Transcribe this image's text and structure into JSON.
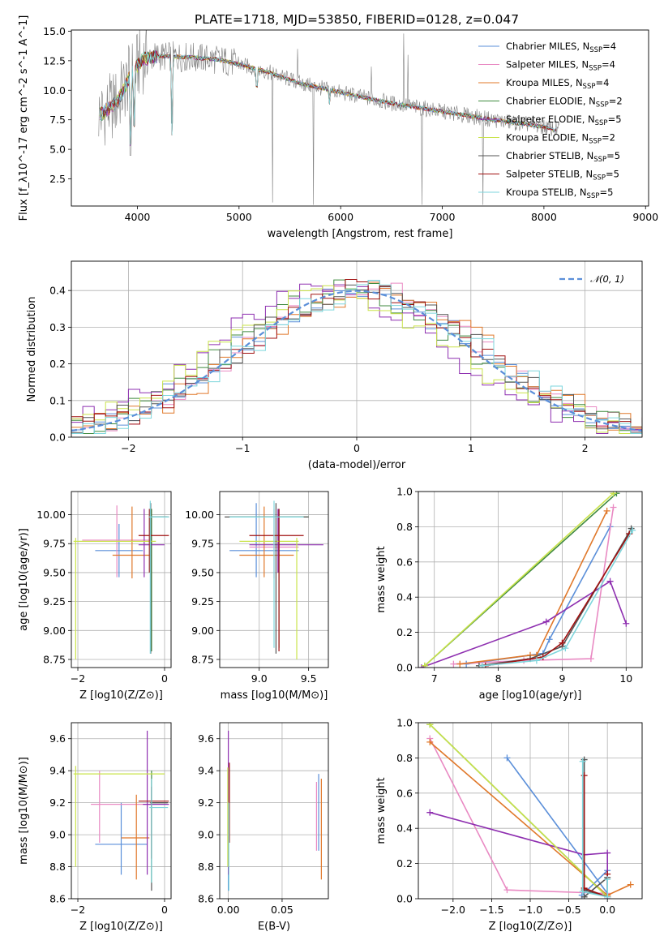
{
  "figure_title": "PLATE=1718, MJD=53850, FIBERID=0128, z=0.047",
  "colors": {
    "chabrier_miles": "#5b8fd9",
    "salpeter_miles": "#e98ac3",
    "kroupa_miles": "#e0782a",
    "chabrier_elodie": "#3f8a3f",
    "salpeter_elodie": "#8e2fb0",
    "kroupa_elodie": "#c9e34a",
    "chabrier_stelib": "#555555",
    "salpeter_stelib": "#a01010",
    "kroupa_stelib": "#7ed6dc",
    "gaussian": "#5b8fd9",
    "data": "#808080"
  },
  "chart_data": [
    {
      "id": "spectrum",
      "type": "line",
      "xlabel": "wavelength [Angstrom, rest frame]",
      "ylabel": "Flux [f_λ10^-17 erg cm^-2 s^-1 A^-1]",
      "xlim": [
        3350,
        9030
      ],
      "ylim": [
        0.2,
        15.1
      ],
      "xticks": [
        4000,
        5000,
        6000,
        7000,
        8000,
        9000
      ],
      "yticks": [
        2.5,
        5.0,
        7.5,
        10.0,
        12.5,
        15.0
      ],
      "legend_position": "top-right",
      "legend": [
        {
          "label": "Chabrier MILES, N",
          "sub": "SSP",
          "suffix": "=4",
          "color": "#5b8fd9"
        },
        {
          "label": "Salpeter MILES, N",
          "sub": "SSP",
          "suffix": "=4",
          "color": "#e98ac3"
        },
        {
          "label": "Kroupa MILES, N",
          "sub": "SSP",
          "suffix": "=4",
          "color": "#e0782a"
        },
        {
          "label": "Chabrier ELODIE, N",
          "sub": "SSP",
          "suffix": "=2",
          "color": "#3f8a3f"
        },
        {
          "label": "Salpeter ELODIE, N",
          "sub": "SSP",
          "suffix": "=5",
          "color": "#8e2fb0"
        },
        {
          "label": "Kroupa ELODIE, N",
          "sub": "SSP",
          "suffix": "=2",
          "color": "#c9e34a"
        },
        {
          "label": "Chabrier STELIB, N",
          "sub": "SSP",
          "suffix": "=5",
          "color": "#555555"
        },
        {
          "label": "Salpeter STELIB, N",
          "sub": "SSP",
          "suffix": "=5",
          "color": "#a01010"
        },
        {
          "label": "Kroupa STELIB, N",
          "sub": "SSP",
          "suffix": "=5",
          "color": "#7ed6dc"
        }
      ],
      "continuum_shape": [
        [
          3650,
          8.0
        ],
        [
          3800,
          9.0
        ],
        [
          3950,
          11.5
        ],
        [
          4050,
          12.6
        ],
        [
          4200,
          12.9
        ],
        [
          4500,
          12.8
        ],
        [
          4800,
          12.6
        ],
        [
          5000,
          12.2
        ],
        [
          5300,
          11.5
        ],
        [
          5600,
          10.6
        ],
        [
          6000,
          9.8
        ],
        [
          6500,
          8.9
        ],
        [
          7000,
          8.2
        ],
        [
          7500,
          7.5
        ],
        [
          8000,
          6.9
        ],
        [
          8100,
          6.7
        ]
      ],
      "absorption_features": [
        [
          3933,
          3.5
        ],
        [
          3968,
          6.0
        ],
        [
          4340,
          6.2
        ],
        [
          5175,
          9.3
        ],
        [
          5890,
          8.8
        ],
        [
          6563,
          8.6
        ],
        [
          7400,
          7.4
        ],
        [
          8100,
          6.5
        ]
      ],
      "data_spikes": [
        [
          5330,
          0.5
        ],
        [
          5577,
          13.5
        ],
        [
          5730,
          0.3
        ],
        [
          6300,
          12.0
        ],
        [
          6620,
          14.8
        ],
        [
          6660,
          13.0
        ],
        [
          6800,
          0.3
        ],
        [
          7400,
          0.3
        ]
      ]
    },
    {
      "id": "residuals",
      "type": "line",
      "xlabel": "(data-model)/error",
      "ylabel": "Normed distribution",
      "xlim": [
        -2.5,
        2.5
      ],
      "ylim": [
        0.0,
        0.48
      ],
      "xticks": [
        -2,
        -1,
        0,
        1,
        2
      ],
      "yticks": [
        0.0,
        0.1,
        0.2,
        0.3,
        0.4
      ],
      "legend": [
        {
          "label": "N(0,1)",
          "color": "#5b8fd9"
        }
      ],
      "legend_position": "top-right",
      "bin_width": 0.1,
      "series_shifts": [
        0.0,
        0.08,
        0.12,
        -0.05,
        -0.25,
        -0.2,
        0.02,
        0.05,
        0.1
      ]
    },
    {
      "id": "age_vs_z",
      "type": "scatter",
      "xlabel": "Z [log10(Z/Z⊙)]",
      "ylabel": "age [log10(age/yr)]",
      "xlim": [
        -2.15,
        0.15
      ],
      "ylim": [
        8.68,
        10.2
      ],
      "xticks": [
        -2,
        0
      ],
      "yticks": [
        8.75,
        9.0,
        9.25,
        9.5,
        9.75,
        10.0
      ],
      "points": [
        {
          "c": "#5b8fd9",
          "x": [
            -1.6,
            -0.5
          ],
          "xc": -1.05,
          "y": [
            9.46,
            9.92
          ],
          "yc": 9.69
        },
        {
          "c": "#e98ac3",
          "x": [
            -1.9,
            -0.3
          ],
          "xc": -1.1,
          "y": [
            9.46,
            10.08
          ],
          "yc": 9.78
        },
        {
          "c": "#e0782a",
          "x": [
            -1.2,
            -0.3
          ],
          "xc": -0.75,
          "y": [
            9.45,
            10.07
          ],
          "yc": 9.65
        },
        {
          "c": "#3f8a3f",
          "x": [
            -0.32,
            0.06
          ],
          "xc": -0.3,
          "y": [
            8.82,
            10.05
          ],
          "yc": 9.98
        },
        {
          "c": "#8e2fb0",
          "x": [
            -0.6,
            0.0
          ],
          "xc": -0.47,
          "y": [
            9.46,
            10.05
          ],
          "yc": 9.74
        },
        {
          "c": "#c9e34a",
          "x": [
            -2.1,
            -0.2
          ],
          "xc": -2.05,
          "y": [
            8.75,
            9.8
          ],
          "yc": 9.77
        },
        {
          "c": "#555555",
          "x": [
            -0.32,
            0.1
          ],
          "xc": -0.32,
          "y": [
            8.8,
            10.1
          ],
          "yc": 9.98
        },
        {
          "c": "#a01010",
          "x": [
            -0.6,
            0.1
          ],
          "xc": -0.35,
          "y": [
            9.5,
            10.05
          ],
          "yc": 9.82
        },
        {
          "c": "#7ed6dc",
          "x": [
            -0.36,
            0.1
          ],
          "xc": -0.33,
          "y": [
            8.8,
            10.12
          ],
          "yc": 9.98
        }
      ]
    },
    {
      "id": "age_vs_mass",
      "type": "scatter",
      "xlabel": "mass [log10(M/M⊙)]",
      "ylabel": "",
      "xlim": [
        8.6,
        9.7
      ],
      "ylim": [
        8.68,
        10.2
      ],
      "xticks": [
        9.0,
        9.5
      ],
      "yticks": [
        8.75,
        9.0,
        9.25,
        9.5,
        9.75,
        10.0
      ],
      "points": [
        {
          "c": "#5b8fd9",
          "x": [
            8.7,
            9.4
          ],
          "xc": 8.97,
          "y": [
            9.46,
            10.1
          ],
          "yc": 9.69
        },
        {
          "c": "#e98ac3",
          "x": [
            8.9,
            9.4
          ],
          "xc": 9.15,
          "y": [
            9.45,
            10.05
          ],
          "yc": 9.72
        },
        {
          "c": "#e0782a",
          "x": [
            8.8,
            9.35
          ],
          "xc": 9.05,
          "y": [
            9.46,
            10.07
          ],
          "yc": 9.65
        },
        {
          "c": "#3f8a3f",
          "x": [
            8.7,
            9.5
          ],
          "xc": 9.2,
          "y": [
            8.85,
            10.05
          ],
          "yc": 9.98
        },
        {
          "c": "#8e2fb0",
          "x": [
            8.9,
            9.65
          ],
          "xc": 9.19,
          "y": [
            9.5,
            10.05
          ],
          "yc": 9.74
        },
        {
          "c": "#c9e34a",
          "x": [
            8.8,
            9.4
          ],
          "xc": 9.38,
          "y": [
            8.75,
            9.8
          ],
          "yc": 9.77
        },
        {
          "c": "#555555",
          "x": [
            8.65,
            9.5
          ],
          "xc": 9.17,
          "y": [
            8.8,
            10.1
          ],
          "yc": 9.98
        },
        {
          "c": "#a01010",
          "x": [
            8.9,
            9.45
          ],
          "xc": 9.2,
          "y": [
            8.82,
            10.05
          ],
          "yc": 9.82
        },
        {
          "c": "#7ed6dc",
          "x": [
            8.7,
            9.45
          ],
          "xc": 9.15,
          "y": [
            8.85,
            10.12
          ],
          "yc": 9.98
        }
      ]
    },
    {
      "id": "weight_vs_age",
      "type": "line",
      "xlabel": "age [log10(age/yr)]",
      "ylabel": "mass weight",
      "xlim": [
        6.75,
        10.25
      ],
      "ylim": [
        0.0,
        1.0
      ],
      "xticks": [
        7,
        8,
        9,
        10
      ],
      "yticks": [
        0.0,
        0.2,
        0.4,
        0.6,
        0.8,
        1.0
      ],
      "series": [
        {
          "c": "#5b8fd9",
          "x": [
            7.5,
            8.7,
            8.8,
            9.75
          ],
          "y": [
            0.02,
            0.08,
            0.16,
            0.8
          ]
        },
        {
          "c": "#e98ac3",
          "x": [
            7.3,
            8.4,
            9.45,
            9.8
          ],
          "y": [
            0.02,
            0.04,
            0.05,
            0.91
          ]
        },
        {
          "c": "#e0782a",
          "x": [
            7.4,
            8.5,
            8.6,
            9.7
          ],
          "y": [
            0.02,
            0.07,
            0.07,
            0.89
          ]
        },
        {
          "c": "#3f8a3f",
          "x": [
            6.85,
            9.85
          ],
          "y": [
            0.01,
            0.99
          ]
        },
        {
          "c": "#8e2fb0",
          "x": [
            6.8,
            8.75,
            9.75,
            10.0
          ],
          "y": [
            0.0,
            0.26,
            0.49,
            0.25
          ]
        },
        {
          "c": "#c9e34a",
          "x": [
            6.85,
            9.8
          ],
          "y": [
            0.01,
            0.99
          ]
        },
        {
          "c": "#555555",
          "x": [
            7.7,
            8.5,
            9.0,
            10.08
          ],
          "y": [
            0.01,
            0.05,
            0.12,
            0.79
          ]
        },
        {
          "c": "#a01010",
          "x": [
            7.8,
            8.7,
            9.0,
            10.05
          ],
          "y": [
            0.01,
            0.06,
            0.14,
            0.76
          ]
        },
        {
          "c": "#7ed6dc",
          "x": [
            7.75,
            8.6,
            9.05,
            10.1
          ],
          "y": [
            0.01,
            0.04,
            0.11,
            0.78
          ]
        }
      ]
    },
    {
      "id": "mass_vs_z",
      "type": "scatter",
      "xlabel": "Z [log10(Z/Z⊙)]",
      "ylabel": "mass [log10(M/M⊙)]",
      "xlim": [
        -2.15,
        0.15
      ],
      "ylim": [
        8.6,
        9.7
      ],
      "xticks": [
        -2,
        0
      ],
      "yticks": [
        8.6,
        8.8,
        9.0,
        9.2,
        9.4,
        9.6
      ],
      "points": [
        {
          "c": "#5b8fd9",
          "x": [
            -1.6,
            -0.4
          ],
          "xc": -1.0,
          "y": [
            8.75,
            9.2
          ],
          "yc": 8.94
        },
        {
          "c": "#e98ac3",
          "x": [
            -1.7,
            -0.3
          ],
          "xc": -1.5,
          "y": [
            8.95,
            9.4
          ],
          "yc": 9.19
        },
        {
          "c": "#e0782a",
          "x": [
            -1.0,
            -0.35
          ],
          "xc": -0.65,
          "y": [
            8.72,
            9.25
          ],
          "yc": 8.98
        },
        {
          "c": "#3f8a3f",
          "x": [
            -0.33,
            0.06
          ],
          "xc": -0.3,
          "y": [
            8.7,
            9.4
          ],
          "yc": 9.2
        },
        {
          "c": "#8e2fb0",
          "x": [
            -0.5,
            0.1
          ],
          "xc": -0.4,
          "y": [
            8.75,
            9.65
          ],
          "yc": 9.19
        },
        {
          "c": "#c9e34a",
          "x": [
            -2.1,
            0.0
          ],
          "xc": -2.05,
          "y": [
            8.8,
            9.43
          ],
          "yc": 9.38
        },
        {
          "c": "#555555",
          "x": [
            -0.33,
            0.08
          ],
          "xc": -0.3,
          "y": [
            8.65,
            9.35
          ],
          "yc": 9.2
        },
        {
          "c": "#a01010",
          "x": [
            -0.6,
            0.1
          ],
          "xc": -0.3,
          "y": [
            8.85,
            9.3
          ],
          "yc": 9.21
        },
        {
          "c": "#7ed6dc",
          "x": [
            -0.35,
            0.08
          ],
          "xc": -0.3,
          "y": [
            8.7,
            9.35
          ],
          "yc": 9.17
        }
      ]
    },
    {
      "id": "mass_vs_ebv",
      "type": "scatter",
      "xlabel": "E(B-V)",
      "ylabel": "",
      "xlim": [
        -0.008,
        0.093
      ],
      "ylim": [
        8.6,
        9.7
      ],
      "xticks": [
        0.0,
        0.05
      ],
      "yticks": [
        8.6,
        8.8,
        9.0,
        9.2,
        9.4,
        9.6
      ],
      "tick_labels_x": [
        "0.00",
        "0.05"
      ],
      "points": [
        {
          "c": "#5b8fd9",
          "xc": 0.0,
          "y": [
            8.65,
            9.2
          ]
        },
        {
          "c": "#8e2fb0",
          "xc": 0.0,
          "y": [
            8.75,
            9.65
          ]
        },
        {
          "c": "#a01010",
          "xc": 0.001,
          "y": [
            8.95,
            9.45
          ]
        },
        {
          "c": "#c9e34a",
          "xc": -0.0005,
          "y": [
            8.8,
            9.42
          ]
        },
        {
          "c": "#7ed6dc",
          "xc": 0.0005,
          "y": [
            8.65,
            9.2
          ]
        },
        {
          "c": "#e0782a",
          "xc": 0.0865,
          "y": [
            8.72,
            9.35
          ]
        },
        {
          "c": "#e98ac3",
          "xc": 0.082,
          "y": [
            8.9,
            9.33
          ]
        },
        {
          "c": "#5b8fd9",
          "xc": 0.084,
          "y": [
            8.9,
            9.38
          ]
        }
      ]
    },
    {
      "id": "weight_vs_z",
      "type": "line",
      "xlabel": "Z [log10(Z/Z⊙)]",
      "ylabel": "mass weight",
      "xlim": [
        -2.45,
        0.45
      ],
      "ylim": [
        0.0,
        1.0
      ],
      "xticks": [
        -2.0,
        -1.5,
        -1.0,
        -0.5,
        0.0
      ],
      "tick_labels_x": [
        "−2.0",
        "−1.5",
        "−1.0",
        "−0.5",
        "0.0"
      ],
      "yticks": [
        0.0,
        0.2,
        0.4,
        0.6,
        0.8,
        1.0
      ],
      "series": [
        {
          "c": "#5b8fd9",
          "x": [
            -1.3,
            0.0,
            0.0,
            -0.33
          ],
          "y": [
            0.8,
            0.03,
            0.16,
            0.02
          ]
        },
        {
          "c": "#e98ac3",
          "x": [
            -2.3,
            -1.3,
            0.0,
            0.0
          ],
          "y": [
            0.91,
            0.05,
            0.03,
            0.02
          ]
        },
        {
          "c": "#e0782a",
          "x": [
            -2.3,
            0.0,
            0.3,
            0.0
          ],
          "y": [
            0.89,
            0.02,
            0.08,
            0.02
          ]
        },
        {
          "c": "#3f8a3f",
          "x": [
            -2.3,
            0.0
          ],
          "y": [
            0.99,
            0.01
          ]
        },
        {
          "c": "#8e2fb0",
          "x": [
            -2.3,
            -0.3,
            0.0,
            0.0
          ],
          "y": [
            0.49,
            0.25,
            0.26,
            0.0
          ]
        },
        {
          "c": "#c9e34a",
          "x": [
            -2.3,
            0.0
          ],
          "y": [
            0.99,
            0.01
          ]
        },
        {
          "c": "#555555",
          "x": [
            -0.3,
            -0.3,
            0.0,
            0.0,
            -0.3
          ],
          "y": [
            0.79,
            0.05,
            0.01,
            0.12,
            0.01
          ]
        },
        {
          "c": "#a01010",
          "x": [
            -0.3,
            -0.3,
            0.0,
            0.0
          ],
          "y": [
            0.7,
            0.06,
            0.01,
            0.14
          ]
        },
        {
          "c": "#7ed6dc",
          "x": [
            -0.32,
            -0.32,
            0.0,
            0.0
          ],
          "y": [
            0.78,
            0.04,
            0.01,
            0.11
          ]
        }
      ]
    }
  ]
}
